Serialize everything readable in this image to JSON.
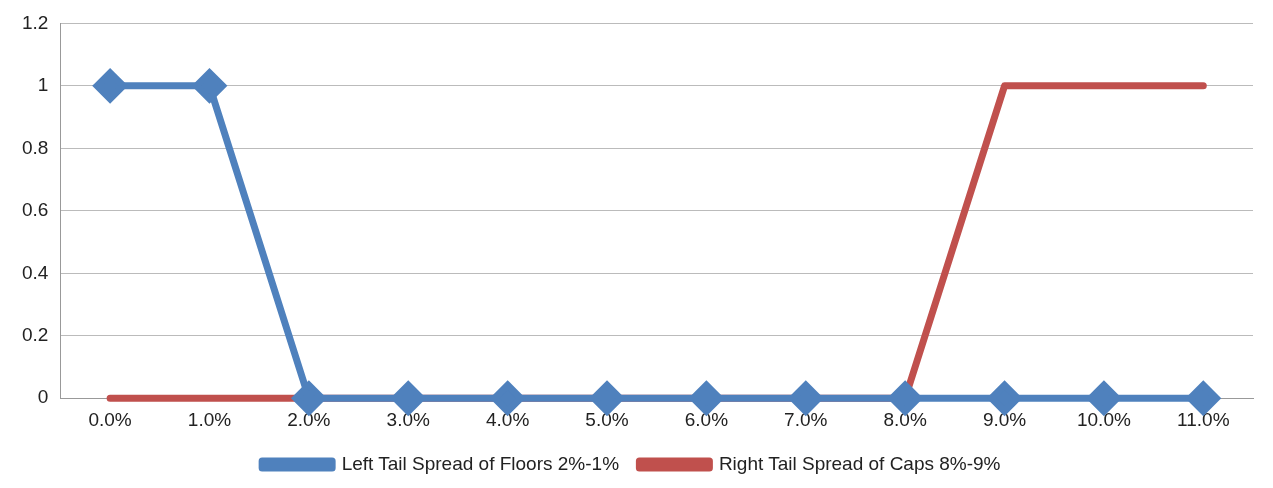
{
  "chart_data": {
    "type": "line",
    "categories": [
      "0.0%",
      "1.0%",
      "2.0%",
      "3.0%",
      "4.0%",
      "5.0%",
      "6.0%",
      "7.0%",
      "8.0%",
      "9.0%",
      "10.0%",
      "11.0%"
    ],
    "series": [
      {
        "name": "Left Tail Spread of Floors 2%-1%",
        "color": "#4f81bd",
        "marker": "diamond",
        "values": [
          1,
          1,
          0,
          0,
          0,
          0,
          0,
          0,
          0,
          0,
          0,
          0
        ]
      },
      {
        "name": "Right Tail Spread of Caps 8%-9%",
        "color": "#c0504d",
        "marker": "none",
        "values": [
          0,
          0,
          0,
          0,
          0,
          0,
          0,
          0,
          0,
          1,
          1,
          1
        ]
      }
    ],
    "ylim": [
      0,
      1.2
    ],
    "yticks": [
      0,
      0.2,
      0.4,
      0.6,
      0.8,
      1,
      1.2
    ],
    "grid": "y",
    "legend": "bottom"
  }
}
